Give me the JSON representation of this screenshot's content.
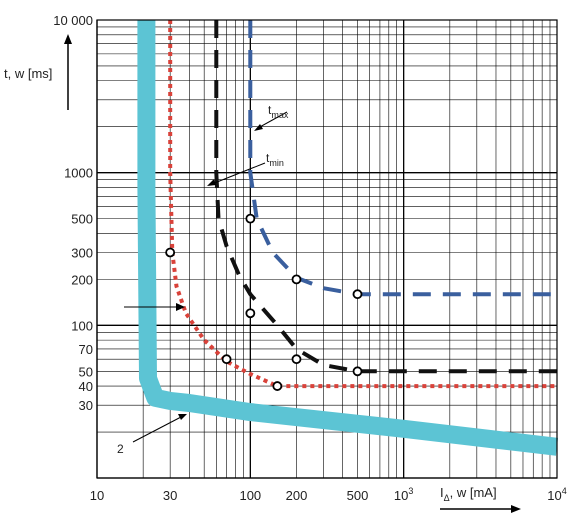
{
  "chart_data": {
    "type": "line",
    "title": "",
    "x_scale": "log",
    "y_scale": "log",
    "xlim": [
      10,
      10000
    ],
    "ylim": [
      10,
      10000
    ],
    "grid": true,
    "x_ticks": [
      {
        "value": 10,
        "label": "10"
      },
      {
        "value": 30,
        "label": "30"
      },
      {
        "value": 100,
        "label": "100"
      },
      {
        "value": 200,
        "label": "200"
      },
      {
        "value": 500,
        "label": "500"
      },
      {
        "value": 1000,
        "label": "10",
        "sup": "3"
      },
      {
        "value": 10000,
        "label": "10",
        "sup": "4"
      }
    ],
    "y_ticks": [
      {
        "value": 30,
        "label": "30"
      },
      {
        "value": 40,
        "label": "40"
      },
      {
        "value": 50,
        "label": "50"
      },
      {
        "value": 70,
        "label": "70"
      },
      {
        "value": 100,
        "label": "100"
      },
      {
        "value": 200,
        "label": "200"
      },
      {
        "value": 300,
        "label": "300"
      },
      {
        "value": 500,
        "label": "500"
      },
      {
        "value": 1000,
        "label": "1000"
      },
      {
        "value": 10000,
        "label": "10 000"
      }
    ],
    "ylabel": "t, w [ms]",
    "xlabel_main": "I",
    "xlabel_sub": "Δ",
    "xlabel_rest": ", w [mA]",
    "series": [
      {
        "style": "band",
        "color": "#5cc4d4",
        "x": [
          21,
          21,
          21.5,
          24,
          30,
          40,
          100,
          1000,
          10000
        ],
        "y": [
          10000,
          800,
          45,
          33.5,
          32,
          31,
          27,
          21,
          16
        ]
      },
      {
        "style": "dotted",
        "color": "#d9423a",
        "x": [
          30,
          30,
          31,
          33,
          38,
          50,
          70,
          100,
          150,
          300,
          1000,
          10000
        ],
        "y": [
          10000,
          1000,
          300,
          180,
          120,
          80,
          58,
          48,
          40,
          40,
          40,
          40
        ]
      },
      {
        "style": "dashed",
        "color": "#111111",
        "x": [
          60,
          60,
          62,
          70,
          85,
          100,
          150,
          200,
          300,
          500,
          1000,
          10000
        ],
        "y": [
          10000,
          1000,
          500,
          330,
          210,
          160,
          100,
          70,
          55,
          50,
          50,
          50
        ]
      },
      {
        "style": "dashed",
        "color": "#3a5f9e",
        "x": [
          100,
          100,
          110,
          140,
          200,
          300,
          500,
          1000,
          10000
        ],
        "y": [
          10000,
          1000,
          500,
          300,
          205,
          175,
          160,
          160,
          160
        ]
      }
    ],
    "markers": [
      {
        "x": 30,
        "y": 300
      },
      {
        "x": 70,
        "y": 60
      },
      {
        "x": 150,
        "y": 40
      },
      {
        "x": 100,
        "y": 500
      },
      {
        "x": 200,
        "y": 200
      },
      {
        "x": 500,
        "y": 160
      },
      {
        "x": 100,
        "y": 120
      },
      {
        "x": 200,
        "y": 60
      },
      {
        "x": 500,
        "y": 50
      }
    ],
    "annotations": [
      {
        "id": "tmax",
        "text": "t",
        "sub": "max"
      },
      {
        "id": "tmin",
        "text": "t",
        "sub": "min"
      },
      {
        "id": "label2",
        "text": "2"
      }
    ]
  }
}
